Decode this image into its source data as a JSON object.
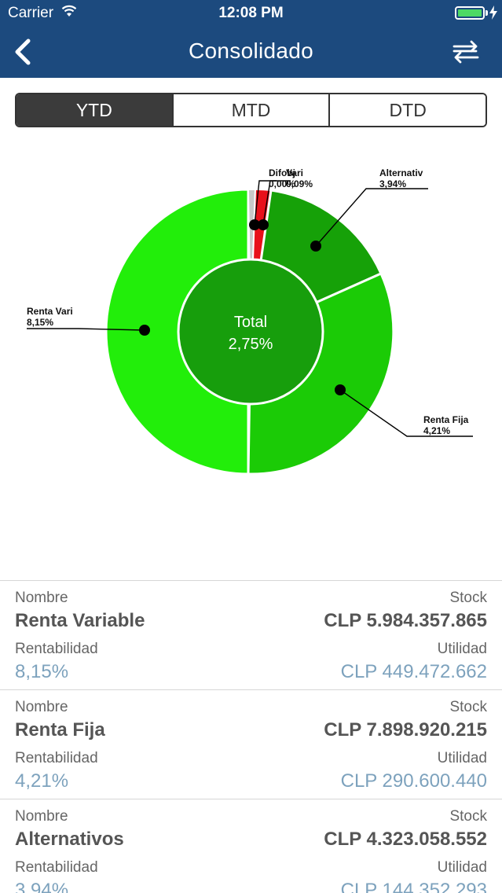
{
  "status": {
    "carrier": "Carrier",
    "time": "12:08 PM"
  },
  "nav": {
    "title": "Consolidado"
  },
  "tabs": [
    {
      "label": "YTD",
      "active": true
    },
    {
      "label": "MTD",
      "active": false
    },
    {
      "label": "DTD",
      "active": false
    }
  ],
  "chart_data": {
    "type": "pie",
    "center": {
      "label": "Total",
      "value": "2,75%"
    },
    "slices": [
      {
        "label": "Difobj",
        "value_label": "0,00%"
      },
      {
        "label": "Vari",
        "value_label": "0,09%"
      },
      {
        "label": "Alternativ",
        "value_label": "3,94%"
      },
      {
        "label": "Renta Fija",
        "value_label": "4,21%"
      },
      {
        "label": "Renta Vari",
        "value_label": "8,15%"
      }
    ],
    "colors": {
      "renta_variable": "#22ee0a",
      "renta_fija": "#1bcb06",
      "alternativos": "#16a108",
      "vari": "#e8101a",
      "difobj": "#c8c8c8",
      "center": "#179e0c"
    }
  },
  "list": [
    {
      "name_caption": "Nombre",
      "name": "Renta Variable",
      "stock_caption": "Stock",
      "stock": "CLP 5.984.357.865",
      "rent_caption": "Rentabilidad",
      "rent": "8,15%",
      "util_caption": "Utilidad",
      "util": "CLP 449.472.662"
    },
    {
      "name_caption": "Nombre",
      "name": "Renta Fija",
      "stock_caption": "Stock",
      "stock": "CLP 7.898.920.215",
      "rent_caption": "Rentabilidad",
      "rent": "4,21%",
      "util_caption": "Utilidad",
      "util": "CLP 290.600.440"
    },
    {
      "name_caption": "Nombre",
      "name": "Alternativos",
      "stock_caption": "Stock",
      "stock": "CLP 4.323.058.552",
      "rent_caption": "Rentabilidad",
      "rent": "3,94%",
      "util_caption": "Utilidad",
      "util": "CLP 144.352.293"
    }
  ]
}
